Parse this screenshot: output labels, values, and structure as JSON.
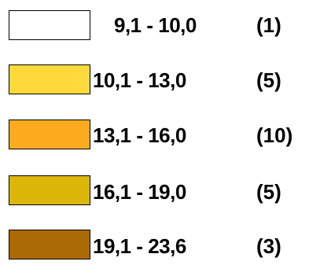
{
  "legend": {
    "items": [
      {
        "range": "9,1 - 10,0",
        "count": "(1)",
        "color": "#ffffff"
      },
      {
        "range": "10,1 - 13,0",
        "count": "(5)",
        "color": "#fdda3a"
      },
      {
        "range": "13,1 - 16,0",
        "count": "(10)",
        "color": "#fdab1e"
      },
      {
        "range": "16,1 - 19,0",
        "count": "(5)",
        "color": "#dcb70a"
      },
      {
        "range": "19,1 - 23,6",
        "count": "(3)",
        "color": "#ac6a05"
      }
    ]
  }
}
